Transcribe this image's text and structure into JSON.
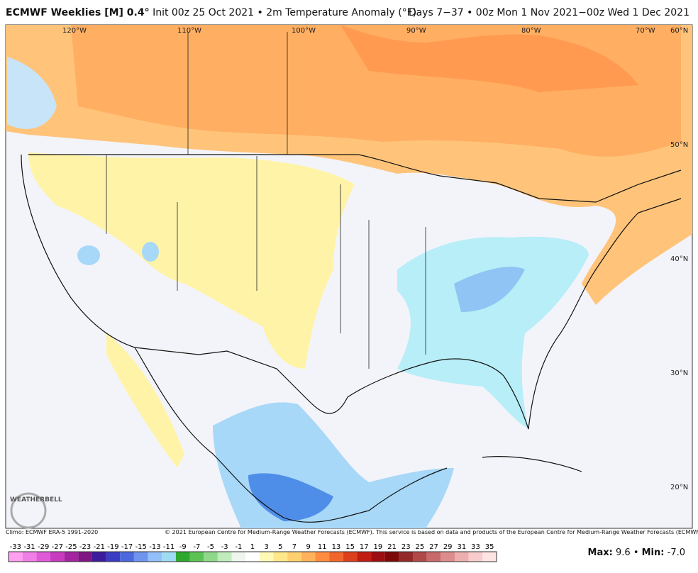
{
  "header": {
    "title_bold": "ECMWF Weeklies [M] 0.4°",
    "title_rest": "Init 00z 25 Oct 2021 • 2m Temperature Anomaly (°F)",
    "days": "Days 7−37 • 00z Mon 1 Nov 2021−00z Wed 1 Dec 2021"
  },
  "longitudes": [
    "120°W",
    "110°W",
    "100°W",
    "90°W",
    "80°W",
    "70°W"
  ],
  "latitudes": [
    "60°N",
    "50°N",
    "40°N",
    "30°N",
    "20°N"
  ],
  "footer": {
    "climo": "Climo: ECMWF ERA-5 1991-2020",
    "copyright": "© 2021 European Centre for Medium-Range Weather Forecasts (ECMWF). This service is based on data and products of the European Centre for Medium-Range Weather Forecasts (ECMWF).",
    "logo": "WEATHERBELL"
  },
  "stats": {
    "max_label": "Max:",
    "max": "9.6",
    "sep": "•",
    "min_label": "Min:",
    "min": "-7.0"
  },
  "colorbar": {
    "labels": [
      -33,
      -31,
      -29,
      -27,
      -25,
      -23,
      -21,
      -19,
      -17,
      -15,
      -13,
      -11,
      -9,
      -7,
      -5,
      -3,
      -1,
      1,
      3,
      5,
      7,
      9,
      11,
      13,
      15,
      17,
      19,
      21,
      23,
      25,
      27,
      29,
      31,
      33,
      35
    ],
    "colors": [
      "#ff9ff0",
      "#f07ee6",
      "#e05ad8",
      "#c83cc0",
      "#a524a0",
      "#801684",
      "#3c1c9c",
      "#3a3cc4",
      "#4b68dc",
      "#6f94ee",
      "#93bff8",
      "#9fdcf4",
      "#2fa830",
      "#5cc254",
      "#8fd88a",
      "#c0ecbc",
      "#eef6ee",
      "#ffffff",
      "#fff9b8",
      "#ffe88a",
      "#ffd070",
      "#ffb25c",
      "#ff8c40",
      "#f2662c",
      "#dc3f1c",
      "#c01c14",
      "#9c0c10",
      "#7c0808",
      "#942828",
      "#b04848",
      "#c86a6a",
      "#dc8c8c",
      "#ecaeae",
      "#f8cccc",
      "#ffe4e4"
    ]
  }
}
